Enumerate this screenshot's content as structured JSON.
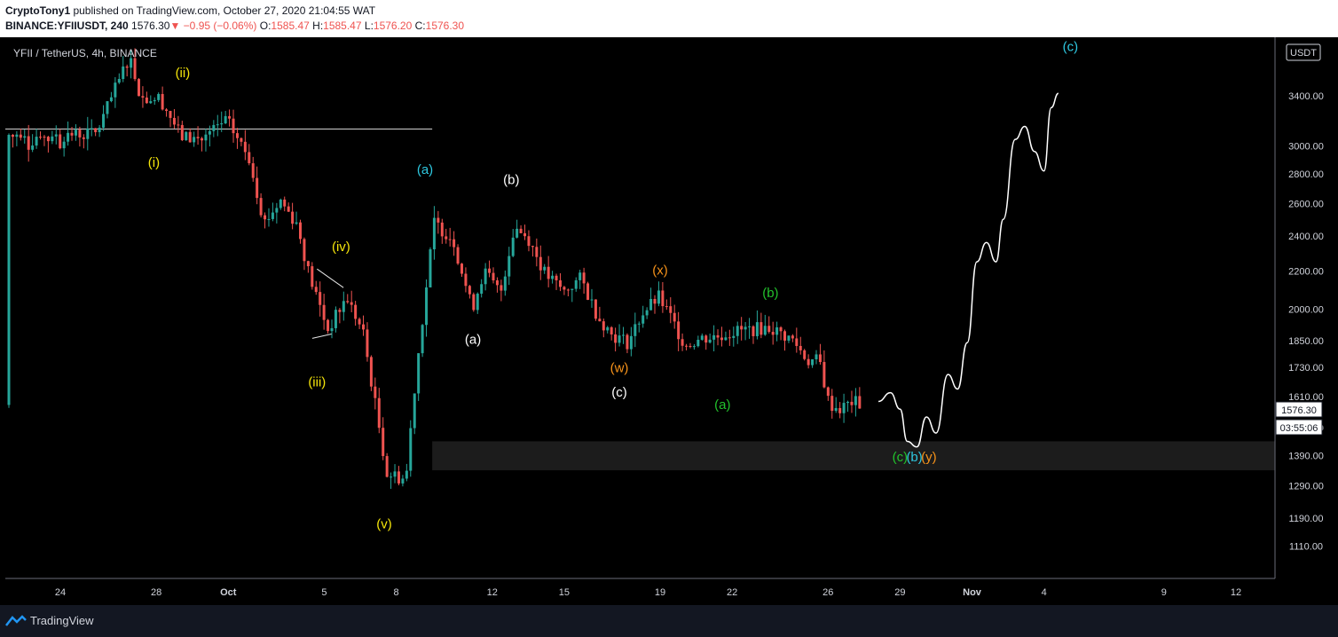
{
  "header": {
    "publisher": "CryptoTony1",
    "published_text": " published on TradingView.com, October 27, 2020 21:04:55 WAT",
    "symbol_line": "BINANCE:YFIIUSDT, 240",
    "last": "1576.30",
    "change": "−0.95 (−0.06%)",
    "open_label": "O:",
    "open": "1585.47",
    "high_label": "H:",
    "high": "1585.47",
    "low_label": "L:",
    "low": "1576.20",
    "close_label": "C:",
    "close": "1576.30"
  },
  "chart": {
    "legend": "YFII / TetherUS, 4h, BINANCE",
    "currency_badge": "USDT",
    "price_tag": "1576.30",
    "countdown": "03:55:06"
  },
  "footer": {
    "brand": "TradingView"
  },
  "colors": {
    "up": "#26a69a",
    "down": "#ef5350",
    "yellow": "#f5e50a",
    "white": "#ffffff",
    "cyan": "#2ec8e0",
    "orange": "#f7931a",
    "green": "#22c22c"
  },
  "chart_data": {
    "type": "candlestick",
    "title": "YFII / TetherUS, 4h, BINANCE",
    "y_axis": {
      "scale": "log",
      "range": [
        1040,
        3880
      ],
      "ticks": [
        1110,
        1190,
        1290,
        1390,
        1490,
        1610,
        1730,
        1850,
        2000,
        2200,
        2400,
        2600,
        2800,
        3000,
        3400
      ]
    },
    "x_axis": {
      "ticks": [
        {
          "label": "24",
          "day": 24
        },
        {
          "label": "28",
          "day": 28
        },
        {
          "label": "Oct",
          "day": 31
        },
        {
          "label": "5",
          "day": 35
        },
        {
          "label": "8",
          "day": 38
        },
        {
          "label": "12",
          "day": 42
        },
        {
          "label": "15",
          "day": 45
        },
        {
          "label": "19",
          "day": 49
        },
        {
          "label": "22",
          "day": 52
        },
        {
          "label": "26",
          "day": 56
        },
        {
          "label": "29",
          "day": 59
        },
        {
          "label": "Nov",
          "day": 62
        },
        {
          "label": "4",
          "day": 65
        },
        {
          "label": "9",
          "day": 70
        },
        {
          "label": "12",
          "day": 73
        }
      ]
    },
    "price_path": [
      [
        24,
        3080
      ],
      [
        25.5,
        3100
      ],
      [
        26.4,
        3500
      ],
      [
        26.9,
        3760
      ],
      [
        27.4,
        3380
      ],
      [
        28.2,
        3380
      ],
      [
        29.1,
        3070
      ],
      [
        30.0,
        3050
      ],
      [
        31.0,
        3200
      ],
      [
        31.4,
        3080
      ],
      [
        32.0,
        2900
      ],
      [
        32.6,
        2480
      ],
      [
        33.3,
        2620
      ],
      [
        34.0,
        2470
      ],
      [
        34.5,
        2180
      ],
      [
        35.3,
        1900
      ],
      [
        36.1,
        2060
      ],
      [
        36.8,
        1880
      ],
      [
        37.3,
        1580
      ],
      [
        37.8,
        1330
      ],
      [
        38.6,
        1310
      ],
      [
        39.0,
        1680
      ],
      [
        39.4,
        2050
      ],
      [
        39.8,
        2480
      ],
      [
        40.6,
        2380
      ],
      [
        41.4,
        2000
      ],
      [
        41.9,
        2200
      ],
      [
        42.6,
        2080
      ],
      [
        43.2,
        2460
      ],
      [
        43.8,
        2380
      ],
      [
        44.5,
        2180
      ],
      [
        45.3,
        2090
      ],
      [
        46.0,
        2160
      ],
      [
        46.7,
        1970
      ],
      [
        47.3,
        1880
      ],
      [
        48.0,
        1840
      ],
      [
        48.6,
        1980
      ],
      [
        49.3,
        2060
      ],
      [
        49.8,
        1960
      ],
      [
        50.4,
        1830
      ],
      [
        51.1,
        1860
      ],
      [
        51.8,
        1870
      ],
      [
        52.4,
        1890
      ],
      [
        53.0,
        1900
      ],
      [
        54.0,
        1910
      ],
      [
        55.0,
        1850
      ],
      [
        55.6,
        1760
      ],
      [
        56.1,
        1760
      ],
      [
        56.5,
        1580
      ],
      [
        57.0,
        1560
      ],
      [
        57.5,
        1590
      ],
      [
        57.9,
        1576.3
      ]
    ],
    "horizontal_line": {
      "price": 3130,
      "from_day": 24,
      "to_day": 39.5
    },
    "support_zone": {
      "low": 1340,
      "high": 1440
    },
    "projection_path": [
      [
        58.1,
        1590
      ],
      [
        58.6,
        1625
      ],
      [
        59.0,
        1560
      ],
      [
        59.3,
        1440
      ],
      [
        59.7,
        1420
      ],
      [
        60.1,
        1530
      ],
      [
        60.5,
        1470
      ],
      [
        61.0,
        1700
      ],
      [
        61.4,
        1640
      ],
      [
        61.8,
        1840
      ],
      [
        62.2,
        2250
      ],
      [
        62.6,
        2360
      ],
      [
        63.0,
        2250
      ],
      [
        63.3,
        2500
      ],
      [
        63.8,
        3050
      ],
      [
        64.2,
        3150
      ],
      [
        64.6,
        2960
      ],
      [
        65.0,
        2820
      ],
      [
        65.3,
        3300
      ],
      [
        65.6,
        3420
      ]
    ],
    "wave_labels": [
      {
        "text": "(ii)",
        "day": 29.1,
        "price": 3560,
        "color": "yellow"
      },
      {
        "text": "(i)",
        "day": 27.9,
        "price": 2850,
        "color": "yellow"
      },
      {
        "text": "(iv)",
        "day": 35.7,
        "price": 2310,
        "color": "yellow"
      },
      {
        "text": "(iii)",
        "day": 34.7,
        "price": 1650,
        "color": "yellow"
      },
      {
        "text": "(v)",
        "day": 37.5,
        "price": 1160,
        "color": "yellow"
      },
      {
        "text": "(a)",
        "day": 39.2,
        "price": 2800,
        "color": "cyan"
      },
      {
        "text": "(b)",
        "day": 42.8,
        "price": 2730,
        "color": "white"
      },
      {
        "text": "(a)",
        "day": 41.2,
        "price": 1835,
        "color": "white"
      },
      {
        "text": "(x)",
        "day": 49.0,
        "price": 2180,
        "color": "orange"
      },
      {
        "text": "(w)",
        "day": 47.3,
        "price": 1710,
        "color": "orange"
      },
      {
        "text": "(c)",
        "day": 47.3,
        "price": 1610,
        "color": "white"
      },
      {
        "text": "(b)",
        "day": 53.6,
        "price": 2060,
        "color": "green"
      },
      {
        "text": "(a)",
        "day": 51.6,
        "price": 1560,
        "color": "green"
      },
      {
        "text": "(c)",
        "day": 59.0,
        "price": 1370,
        "color": "green"
      },
      {
        "text": "(b)",
        "day": 59.6,
        "price": 1370,
        "color": "cyan"
      },
      {
        "text": "(y)",
        "day": 60.2,
        "price": 1370,
        "color": "orange"
      },
      {
        "text": "(c)",
        "day": 66.1,
        "price": 3800,
        "color": "cyan"
      }
    ],
    "trendlines": [
      {
        "from": [
          34.7,
          2210
        ],
        "to": [
          35.8,
          2110
        ]
      },
      {
        "from": [
          34.5,
          1860
        ],
        "to": [
          35.3,
          1880
        ]
      }
    ]
  }
}
